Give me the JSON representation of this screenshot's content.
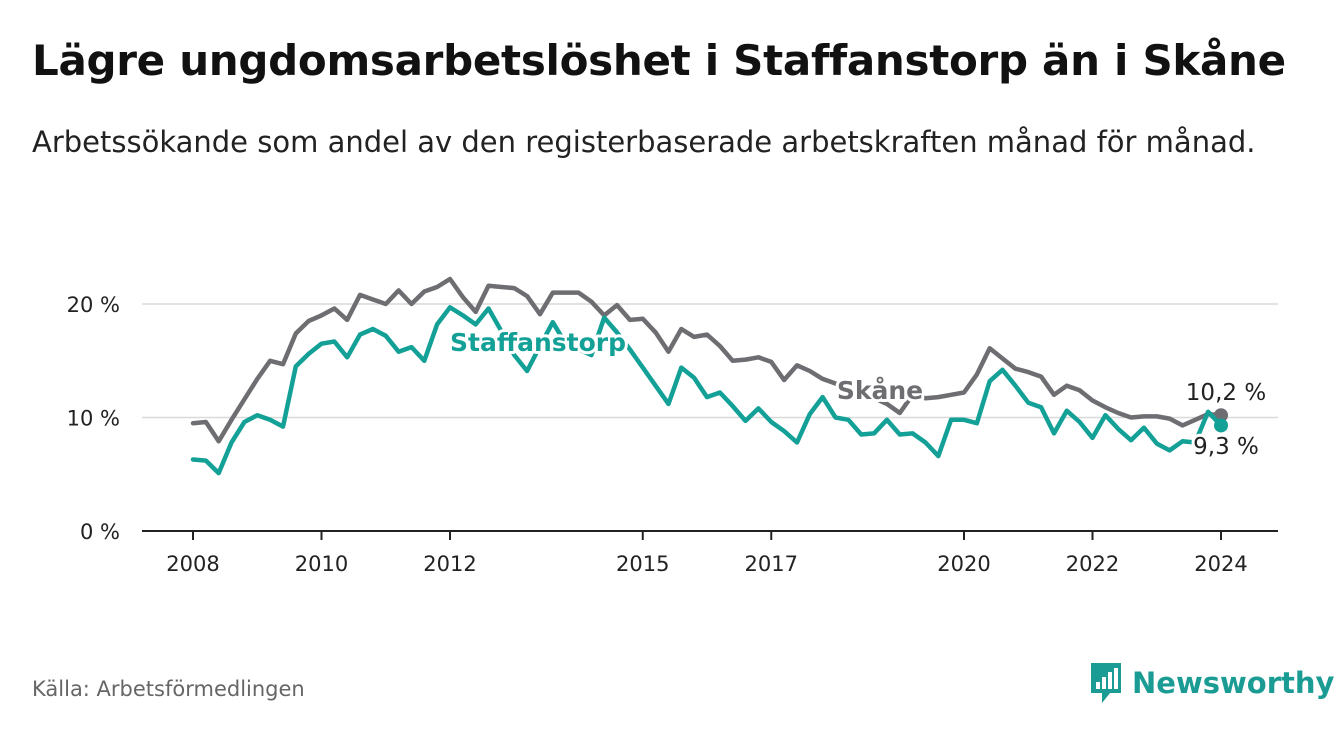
{
  "header": {
    "title": "Lägre ungdomsarbetslöshet i Staffanstorp än i Skåne",
    "subtitle": "Arbetssökande som andel av den registerbaserade arbetskraften månad för månad."
  },
  "footer": {
    "source": "Källa: Arbetsförmedlingen",
    "brand": "Newsworthy",
    "brand_icon": "bar-chart-icon"
  },
  "colors": {
    "staffanstorp": "#13a097",
    "skane": "#6e6d72",
    "grid": "#d9d9d9",
    "brand": "#1a9b94"
  },
  "chart_data": {
    "type": "line",
    "title": "Lägre ungdomsarbetslöshet i Staffanstorp än i Skåne",
    "xlabel": "",
    "ylabel": "",
    "xlim": [
      2008,
      2024.3
    ],
    "ylim": [
      0,
      22
    ],
    "x_ticks": [
      2008,
      2010,
      2012,
      2015,
      2017,
      2020,
      2022,
      2024
    ],
    "x_tick_labels": [
      "2008",
      "2010",
      "2012",
      "2015",
      "2017",
      "2020",
      "2022",
      "2024"
    ],
    "y_ticks": [
      0,
      10,
      20
    ],
    "y_tick_labels": [
      "0 %",
      "10 %",
      "20 %"
    ],
    "grid": "horizontal",
    "series": [
      {
        "name": "Skåne",
        "label": "Skåne",
        "end_label": "10,2 %",
        "x": [
          2008.0,
          2008.2,
          2008.4,
          2008.6,
          2008.8,
          2009.0,
          2009.2,
          2009.4,
          2009.6,
          2009.8,
          2010.0,
          2010.2,
          2010.4,
          2010.6,
          2010.8,
          2011.0,
          2011.2,
          2011.4,
          2011.6,
          2011.8,
          2012.0,
          2012.2,
          2012.4,
          2012.6,
          2012.8,
          2013.0,
          2013.2,
          2013.4,
          2013.6,
          2013.8,
          2014.0,
          2014.2,
          2014.4,
          2014.6,
          2014.8,
          2015.0,
          2015.2,
          2015.4,
          2015.6,
          2015.8,
          2016.0,
          2016.2,
          2016.4,
          2016.6,
          2016.8,
          2017.0,
          2017.2,
          2017.4,
          2017.6,
          2017.8,
          2018.0,
          2018.2,
          2018.4,
          2018.6,
          2018.8,
          2019.0,
          2019.2,
          2019.4,
          2019.6,
          2019.8,
          2020.0,
          2020.2,
          2020.4,
          2020.6,
          2020.8,
          2021.0,
          2021.2,
          2021.4,
          2021.6,
          2021.8,
          2022.0,
          2022.2,
          2022.4,
          2022.6,
          2022.8,
          2023.0,
          2023.2,
          2023.4,
          2023.6,
          2023.8,
          2024.0
        ],
        "values": [
          9.5,
          9.6,
          7.9,
          9.8,
          11.6,
          13.4,
          15.0,
          14.7,
          17.4,
          18.5,
          19.0,
          19.6,
          18.6,
          20.8,
          20.4,
          20.0,
          21.2,
          20.0,
          21.1,
          21.5,
          22.2,
          20.6,
          19.3,
          21.6,
          21.5,
          21.4,
          20.7,
          19.1,
          21.0,
          21.0,
          21.0,
          20.2,
          19.0,
          19.9,
          18.6,
          18.7,
          17.5,
          15.8,
          17.8,
          17.1,
          17.3,
          16.3,
          15.0,
          15.1,
          15.3,
          14.9,
          13.3,
          14.6,
          14.1,
          13.4,
          13.0,
          12.5,
          12.1,
          11.7,
          11.2,
          10.4,
          12.0,
          11.7,
          11.8,
          12.0,
          12.2,
          13.8,
          16.1,
          15.2,
          14.3,
          14.0,
          13.6,
          12.0,
          12.8,
          12.4,
          11.5,
          10.9,
          10.4,
          10.0,
          10.1,
          10.1,
          9.9,
          9.3,
          9.8,
          10.3,
          10.2
        ]
      },
      {
        "name": "Staffanstorp",
        "label": "Staffanstorp",
        "end_label": "9,3 %",
        "x": [
          2008.0,
          2008.2,
          2008.4,
          2008.6,
          2008.8,
          2009.0,
          2009.2,
          2009.4,
          2009.6,
          2009.8,
          2010.0,
          2010.2,
          2010.4,
          2010.6,
          2010.8,
          2011.0,
          2011.2,
          2011.4,
          2011.6,
          2011.8,
          2012.0,
          2012.2,
          2012.4,
          2012.6,
          2012.8,
          2013.0,
          2013.2,
          2013.4,
          2013.6,
          2013.8,
          2014.0,
          2014.2,
          2014.4,
          2014.6,
          2014.8,
          2015.0,
          2015.2,
          2015.4,
          2015.6,
          2015.8,
          2016.0,
          2016.2,
          2016.4,
          2016.6,
          2016.8,
          2017.0,
          2017.2,
          2017.4,
          2017.6,
          2017.8,
          2018.0,
          2018.2,
          2018.4,
          2018.6,
          2018.8,
          2019.0,
          2019.2,
          2019.4,
          2019.6,
          2019.8,
          2020.0,
          2020.2,
          2020.4,
          2020.6,
          2020.8,
          2021.0,
          2021.2,
          2021.4,
          2021.6,
          2021.8,
          2022.0,
          2022.2,
          2022.4,
          2022.6,
          2022.8,
          2023.0,
          2023.2,
          2023.4,
          2023.6,
          2023.8,
          2024.0
        ],
        "values": [
          6.3,
          6.2,
          5.1,
          7.8,
          9.6,
          10.2,
          9.8,
          9.2,
          14.5,
          15.6,
          16.5,
          16.7,
          15.3,
          17.3,
          17.8,
          17.2,
          15.8,
          16.2,
          15.0,
          18.2,
          19.7,
          19.0,
          18.2,
          19.6,
          17.6,
          15.5,
          14.1,
          16.3,
          18.4,
          16.5,
          16.0,
          15.5,
          18.8,
          17.5,
          16.0,
          14.4,
          12.8,
          11.2,
          14.4,
          13.5,
          11.8,
          12.2,
          11.0,
          9.7,
          10.8,
          9.6,
          8.8,
          7.8,
          10.3,
          11.8,
          10.0,
          9.8,
          8.5,
          8.6,
          9.8,
          8.5,
          8.6,
          7.8,
          6.6,
          9.8,
          9.8,
          9.5,
          13.2,
          14.2,
          12.8,
          11.3,
          10.9,
          8.6,
          10.6,
          9.6,
          8.2,
          10.2,
          9.0,
          8.0,
          9.1,
          7.7,
          7.1,
          7.9,
          7.8,
          10.5,
          9.3
        ]
      }
    ]
  }
}
